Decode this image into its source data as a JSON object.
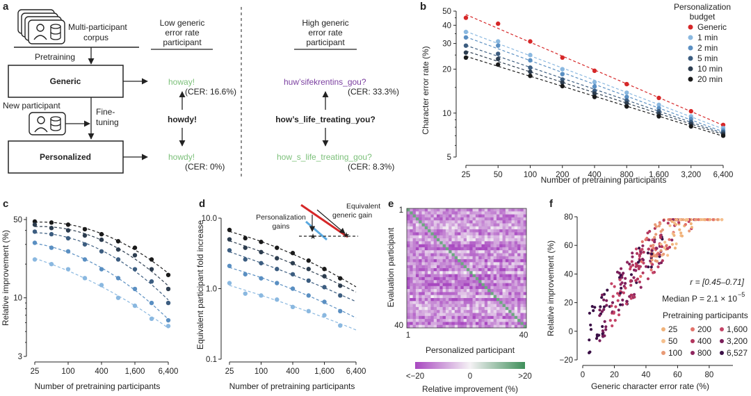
{
  "panel_labels": [
    "a",
    "b",
    "c",
    "d",
    "e",
    "f"
  ],
  "panel_a": {
    "corpus_label": [
      "Multi-participant",
      "corpus"
    ],
    "pretraining": "Pretraining",
    "generic": "Generic",
    "new_participant": "New participant",
    "finetuning": [
      "Fine-",
      "tuning"
    ],
    "personalized": "Personalized",
    "low_header": [
      "Low generic",
      "error rate",
      "participant"
    ],
    "high_header": [
      "High generic",
      "error rate",
      "participant"
    ],
    "low_generic_pred": "howay!",
    "low_generic_cer": "(CER: 16.6%)",
    "low_target": "howdy!",
    "low_personal_pred": "howdy!",
    "low_personal_cer": "(CER: 0%)",
    "high_generic_pred": "huw’sifekrentins_gou?",
    "high_generic_cer": "(CER: 33.3%)",
    "high_target": "how’s_life_treating_you?",
    "high_personal_pred": "how_s_life_treating_gou?",
    "high_personal_cer": "(CER: 8.3%)",
    "colors": {
      "correct": "#7cc07a",
      "error": "#7b3fa0"
    }
  },
  "chart_data": [
    {
      "panel": "b",
      "type": "line",
      "xlabel": "Number of pretraining participants",
      "ylabel": "Character error rate (%)",
      "x": [
        25,
        50,
        100,
        200,
        400,
        800,
        1600,
        3200,
        6400
      ],
      "x_ticks": [
        "25",
        "50",
        "100",
        "200",
        "400",
        "800",
        "1,600",
        "3,200",
        "6,400"
      ],
      "y_ticks": [
        "5",
        "10",
        "20",
        "30",
        "40",
        "50"
      ],
      "y_scale": "log",
      "ylim": [
        5,
        50
      ],
      "legend_title": [
        "Personalization",
        "budget"
      ],
      "legend_position": "top-right",
      "series": [
        {
          "name": "Generic",
          "color": "#d62728",
          "values": [
            45,
            41,
            31,
            24,
            19.5,
            15.8,
            12.7,
            10.3,
            8.3
          ]
        },
        {
          "name": "1 min",
          "color": "#8ab8e0",
          "values": [
            36,
            31,
            25,
            20,
            16.3,
            13.8,
            11.4,
            9.5,
            7.9
          ]
        },
        {
          "name": "2 min",
          "color": "#5a8fc2",
          "values": [
            33,
            29,
            23,
            18.5,
            15.2,
            12.9,
            10.8,
            9.1,
            7.6
          ]
        },
        {
          "name": "5 min",
          "color": "#3c5d80",
          "values": [
            29,
            25.5,
            20.5,
            17,
            14.2,
            12.2,
            10.3,
            8.7,
            7.4
          ]
        },
        {
          "name": "10 min",
          "color": "#2d3d4f",
          "values": [
            26,
            23.5,
            19.2,
            16.2,
            13.6,
            11.7,
            9.9,
            8.4,
            7.2
          ]
        },
        {
          "name": "20 min",
          "color": "#1a1a1a",
          "values": [
            24,
            21.5,
            18,
            15.3,
            12.9,
            11.1,
            9.5,
            8.1,
            7.0
          ]
        }
      ]
    },
    {
      "panel": "c",
      "type": "scatter",
      "xlabel": "Number of pretraining participants",
      "ylabel": "Relative improvement (%)",
      "x": [
        25,
        50,
        100,
        200,
        400,
        800,
        1600,
        3200,
        6400
      ],
      "x_ticks": [
        "25",
        "100",
        "400",
        "1,600",
        "6,400"
      ],
      "y_ticks": [
        "3",
        "10",
        "50"
      ],
      "y_scale": "log",
      "ylim": [
        3,
        50
      ],
      "series": [
        {
          "name": "20 min",
          "color": "#1a1a1a",
          "values": [
            48,
            47,
            45,
            41,
            37,
            32,
            28,
            22,
            16
          ]
        },
        {
          "name": "10 min",
          "color": "#2d3d4f",
          "values": [
            45,
            42,
            40,
            36,
            33,
            27,
            24,
            18,
            12
          ]
        },
        {
          "name": "5 min",
          "color": "#3c5d80",
          "values": [
            39,
            37,
            34,
            30,
            26,
            22,
            18,
            14,
            9
          ]
        },
        {
          "name": "2 min",
          "color": "#5a8fc2",
          "values": [
            31,
            28,
            26,
            22,
            18,
            15,
            12,
            9,
            6.3
          ]
        },
        {
          "name": "1 min",
          "color": "#8ab8e0",
          "values": [
            22,
            20,
            18,
            15,
            13,
            10,
            8.5,
            6.5,
            5.6
          ]
        }
      ]
    },
    {
      "panel": "d",
      "type": "scatter",
      "xlabel": "Number of pretraining participants",
      "ylabel": "Equivalent participant fold increase",
      "x": [
        25,
        50,
        100,
        200,
        400,
        800,
        1600,
        3200
      ],
      "x_ticks": [
        "25",
        "100",
        "400",
        "1,600",
        "6,400"
      ],
      "y_ticks": [
        "0.1",
        "1.0",
        "10.0"
      ],
      "y_scale": "log",
      "ylim": [
        0.1,
        10
      ],
      "inset_labels": {
        "personalization": [
          "Personalization",
          "gains"
        ],
        "equivalent": [
          "Equivalent",
          "generic gain"
        ]
      },
      "series": [
        {
          "name": "20 min",
          "color": "#1a1a1a",
          "values": [
            6.8,
            5.2,
            4.6,
            3.8,
            3.2,
            2.5,
            1.9,
            1.4
          ]
        },
        {
          "name": "10 min",
          "color": "#2d3d4f",
          "values": [
            5.0,
            3.8,
            3.3,
            2.7,
            2.3,
            1.9,
            1.5,
            1.1
          ]
        },
        {
          "name": "5 min",
          "color": "#3c5d80",
          "values": [
            3.5,
            2.6,
            2.3,
            1.9,
            1.6,
            1.3,
            1.05,
            0.8
          ]
        },
        {
          "name": "2 min",
          "color": "#5a8fc2",
          "values": [
            2.1,
            1.6,
            1.4,
            1.2,
            1.0,
            0.8,
            0.65,
            0.48
          ]
        },
        {
          "name": "1 min",
          "color": "#8ab8e0",
          "values": [
            1.2,
            0.85,
            0.8,
            0.7,
            0.55,
            0.48,
            0.42,
            0.3
          ]
        }
      ]
    },
    {
      "panel": "e",
      "type": "heatmap",
      "xlabel": "Personalized participant",
      "ylabel": "Evaluation participant",
      "x_ticks": [
        "1",
        "40"
      ],
      "y_ticks": [
        "1",
        "40"
      ],
      "n": 40,
      "diagonal_value": 15,
      "colorbar_label": "Relative improvement (%)",
      "colorbar_ticks": [
        "<−20",
        "0",
        ">20"
      ],
      "colorbar_range": [
        -20,
        20
      ]
    },
    {
      "panel": "f",
      "type": "scatter",
      "xlabel": "Generic character error rate (%)",
      "ylabel": "Relative improvement (%)",
      "x_ticks": [
        "0",
        "20",
        "40",
        "60",
        "80"
      ],
      "y_ticks": [
        "−20",
        "0",
        "20",
        "40",
        "60",
        "80"
      ],
      "xlim": [
        0,
        95
      ],
      "ylim": [
        -20,
        80
      ],
      "stat_r": "r = [0.45–0.71]",
      "stat_p": "Median P = 2.1 × 10",
      "stat_p_exp": "−5",
      "legend_title": "Pretraining participants",
      "legend_position": "bottom-right",
      "legend_items": [
        "25",
        "200",
        "1,600",
        "50",
        "400",
        "3,200",
        "100",
        "800",
        "6,527"
      ],
      "legend_colors": [
        "#f0b27a",
        "#e2736b",
        "#c44366",
        "#f5c08e",
        "#b2365e",
        "#7a1f5a",
        "#e89a76",
        "#8f2760",
        "#3b1046"
      ],
      "point_count": 320
    }
  ]
}
